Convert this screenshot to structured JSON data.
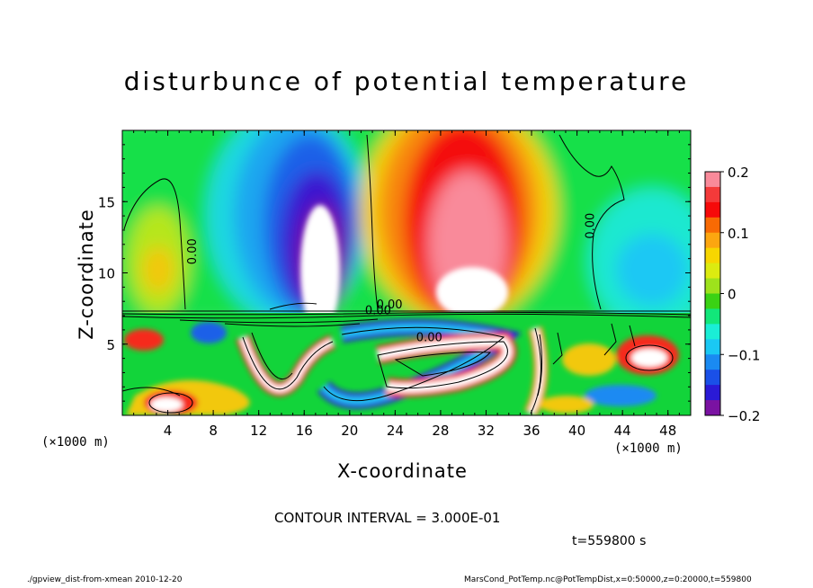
{
  "chart_data": {
    "type": "heatmap",
    "title": "disturbunce of potential temperature",
    "xlabel": "X-coordinate",
    "ylabel": "Z-coordinate",
    "x_unit": "(×1000 m)",
    "y_unit": "(×1000 m)",
    "xlim": [
      0,
      50
    ],
    "ylim": [
      0,
      20
    ],
    "x_ticks": [
      4,
      8,
      12,
      16,
      20,
      24,
      28,
      32,
      36,
      40,
      44,
      48
    ],
    "y_ticks": [
      5,
      10,
      15
    ],
    "colorbar": {
      "range": [
        -0.2,
        0.2
      ],
      "ticks": [
        "0.2",
        "0.1",
        "0",
        "−0.1",
        "−0.2"
      ],
      "colors": [
        "#f98a9a",
        "#f43a3a",
        "#f60a0a",
        "#f86a04",
        "#fca610",
        "#f7d600",
        "#dceb10",
        "#9ee21c",
        "#3ad214",
        "#12e77a",
        "#1aeed6",
        "#1ac8f4",
        "#1a8af2",
        "#1a50e8",
        "#2a1ad6",
        "#7a12a2"
      ]
    },
    "contour_interval": "CONTOUR INTERVAL = 3.000E-01",
    "contour_labels": [
      "0.00",
      "0.00",
      "0.00",
      "0.00",
      "0.00"
    ],
    "time_label": "t=559800 s",
    "fields": {
      "upper_anomalies": [
        {
          "x": 4.5,
          "z": 11,
          "value": 0.1
        },
        {
          "x": 16.8,
          "z": 13,
          "value": -0.2
        },
        {
          "x": 29.5,
          "z": 12,
          "value": 0.2
        },
        {
          "x": 45,
          "z": 10.5,
          "value": -0.1
        }
      ]
    }
  },
  "footer": {
    "left": "./gpview_dist-from-xmean  2010-12-20",
    "right": "MarsCond_PotTemp.nc@PotTempDist,x=0:50000,z=0:20000,t=559800"
  }
}
